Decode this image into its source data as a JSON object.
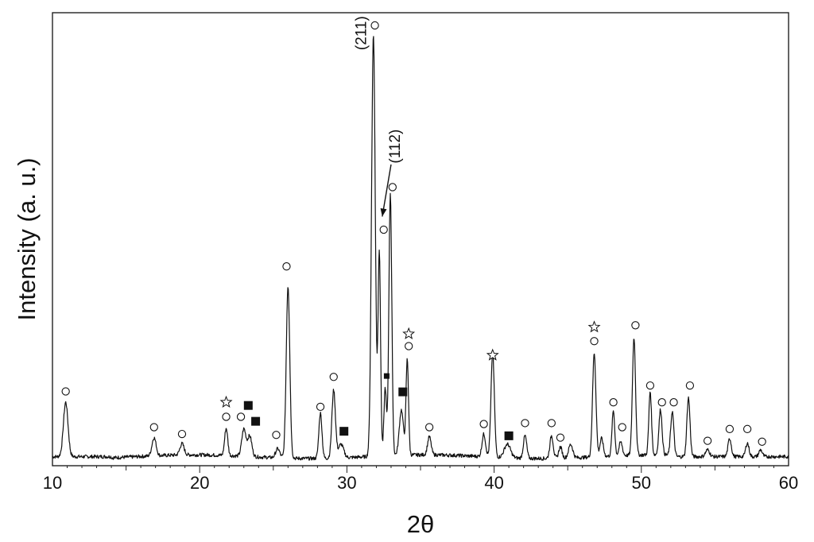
{
  "chart_data": {
    "type": "line",
    "xlabel": "2θ",
    "ylabel": "Intensity (a. u.)",
    "xlim": [
      10,
      60
    ],
    "xticks": [
      10,
      20,
      30,
      40,
      50,
      60
    ],
    "yticks": [],
    "grid": false,
    "baseline": 0.02,
    "peaks": [
      {
        "x": 10.9,
        "h": 0.12,
        "w": 0.22
      },
      {
        "x": 16.9,
        "h": 0.04,
        "w": 0.2
      },
      {
        "x": 18.8,
        "h": 0.025,
        "w": 0.2
      },
      {
        "x": 21.8,
        "h": 0.06,
        "w": 0.15
      },
      {
        "x": 23.0,
        "h": 0.06,
        "w": 0.2
      },
      {
        "x": 23.4,
        "h": 0.045,
        "w": 0.2
      },
      {
        "x": 25.3,
        "h": 0.02,
        "w": 0.2
      },
      {
        "x": 26.0,
        "h": 0.38,
        "w": 0.17
      },
      {
        "x": 28.2,
        "h": 0.1,
        "w": 0.15
      },
      {
        "x": 29.1,
        "h": 0.15,
        "w": 0.17
      },
      {
        "x": 29.6,
        "h": 0.03,
        "w": 0.25
      },
      {
        "x": 31.8,
        "h": 0.93,
        "w": 0.18
      },
      {
        "x": 32.2,
        "h": 0.45,
        "w": 0.12
      },
      {
        "x": 32.6,
        "h": 0.15,
        "w": 0.12
      },
      {
        "x": 32.95,
        "h": 0.58,
        "w": 0.14
      },
      {
        "x": 33.7,
        "h": 0.1,
        "w": 0.2
      },
      {
        "x": 34.1,
        "h": 0.21,
        "w": 0.12
      },
      {
        "x": 35.6,
        "h": 0.04,
        "w": 0.17
      },
      {
        "x": 39.3,
        "h": 0.05,
        "w": 0.17
      },
      {
        "x": 39.9,
        "h": 0.23,
        "w": 0.16
      },
      {
        "x": 40.9,
        "h": 0.03,
        "w": 0.3
      },
      {
        "x": 42.1,
        "h": 0.05,
        "w": 0.16
      },
      {
        "x": 43.9,
        "h": 0.05,
        "w": 0.16
      },
      {
        "x": 44.5,
        "h": 0.025,
        "w": 0.16
      },
      {
        "x": 45.2,
        "h": 0.03,
        "w": 0.2
      },
      {
        "x": 46.8,
        "h": 0.23,
        "w": 0.16
      },
      {
        "x": 47.3,
        "h": 0.04,
        "w": 0.16
      },
      {
        "x": 48.1,
        "h": 0.1,
        "w": 0.13
      },
      {
        "x": 48.6,
        "h": 0.03,
        "w": 0.16
      },
      {
        "x": 49.5,
        "h": 0.26,
        "w": 0.15
      },
      {
        "x": 50.6,
        "h": 0.14,
        "w": 0.13
      },
      {
        "x": 51.3,
        "h": 0.1,
        "w": 0.15
      },
      {
        "x": 52.1,
        "h": 0.1,
        "w": 0.15
      },
      {
        "x": 53.2,
        "h": 0.13,
        "w": 0.15
      },
      {
        "x": 54.5,
        "h": 0.015,
        "w": 0.2
      },
      {
        "x": 56.0,
        "h": 0.04,
        "w": 0.16
      },
      {
        "x": 57.2,
        "h": 0.03,
        "w": 0.16
      },
      {
        "x": 58.1,
        "h": 0.015,
        "w": 0.16
      }
    ],
    "markers": [
      {
        "x": 10.9,
        "y": 0.164,
        "symbol": "circle"
      },
      {
        "x": 16.9,
        "y": 0.085,
        "symbol": "circle"
      },
      {
        "x": 18.8,
        "y": 0.07,
        "symbol": "circle"
      },
      {
        "x": 21.8,
        "y": 0.108,
        "symbol": "circle"
      },
      {
        "x": 21.8,
        "y": 0.14,
        "symbol": "star"
      },
      {
        "x": 22.8,
        "y": 0.108,
        "symbol": "circle"
      },
      {
        "x": 23.3,
        "y": 0.133,
        "symbol": "square"
      },
      {
        "x": 23.8,
        "y": 0.098,
        "symbol": "square"
      },
      {
        "x": 25.2,
        "y": 0.068,
        "symbol": "circle"
      },
      {
        "x": 25.9,
        "y": 0.44,
        "symbol": "circle"
      },
      {
        "x": 28.2,
        "y": 0.13,
        "symbol": "circle"
      },
      {
        "x": 29.1,
        "y": 0.196,
        "symbol": "circle"
      },
      {
        "x": 29.8,
        "y": 0.076,
        "symbol": "square"
      },
      {
        "x": 31.9,
        "y": 0.972,
        "symbol": "circle"
      },
      {
        "x": 32.7,
        "y": 0.198,
        "symbol": "square-small"
      },
      {
        "x": 32.5,
        "y": 0.521,
        "symbol": "circle"
      },
      {
        "x": 33.1,
        "y": 0.615,
        "symbol": "circle"
      },
      {
        "x": 33.8,
        "y": 0.163,
        "symbol": "square"
      },
      {
        "x": 34.2,
        "y": 0.264,
        "symbol": "circle"
      },
      {
        "x": 34.2,
        "y": 0.291,
        "symbol": "star"
      },
      {
        "x": 35.6,
        "y": 0.085,
        "symbol": "circle"
      },
      {
        "x": 39.3,
        "y": 0.092,
        "symbol": "circle"
      },
      {
        "x": 39.9,
        "y": 0.244,
        "symbol": "star"
      },
      {
        "x": 41.0,
        "y": 0.066,
        "symbol": "square"
      },
      {
        "x": 42.1,
        "y": 0.094,
        "symbol": "circle"
      },
      {
        "x": 43.9,
        "y": 0.094,
        "symbol": "circle"
      },
      {
        "x": 44.5,
        "y": 0.062,
        "symbol": "circle"
      },
      {
        "x": 46.8,
        "y": 0.275,
        "symbol": "circle"
      },
      {
        "x": 46.8,
        "y": 0.306,
        "symbol": "star"
      },
      {
        "x": 48.1,
        "y": 0.14,
        "symbol": "circle"
      },
      {
        "x": 48.7,
        "y": 0.085,
        "symbol": "circle"
      },
      {
        "x": 49.6,
        "y": 0.31,
        "symbol": "circle"
      },
      {
        "x": 50.6,
        "y": 0.177,
        "symbol": "circle"
      },
      {
        "x": 51.4,
        "y": 0.14,
        "symbol": "circle"
      },
      {
        "x": 52.2,
        "y": 0.14,
        "symbol": "circle"
      },
      {
        "x": 53.3,
        "y": 0.177,
        "symbol": "circle"
      },
      {
        "x": 54.5,
        "y": 0.055,
        "symbol": "circle"
      },
      {
        "x": 56.0,
        "y": 0.081,
        "symbol": "circle"
      },
      {
        "x": 57.2,
        "y": 0.081,
        "symbol": "circle"
      },
      {
        "x": 58.2,
        "y": 0.053,
        "symbol": "circle"
      }
    ],
    "annotations": [
      {
        "text": "(211)",
        "x": 31.3,
        "y": 0.955
      },
      {
        "text": "(112)",
        "x": 33.6,
        "y": 0.705
      }
    ],
    "arrow": {
      "from": [
        33.0,
        0.665
      ],
      "to": [
        32.4,
        0.55
      ]
    }
  }
}
